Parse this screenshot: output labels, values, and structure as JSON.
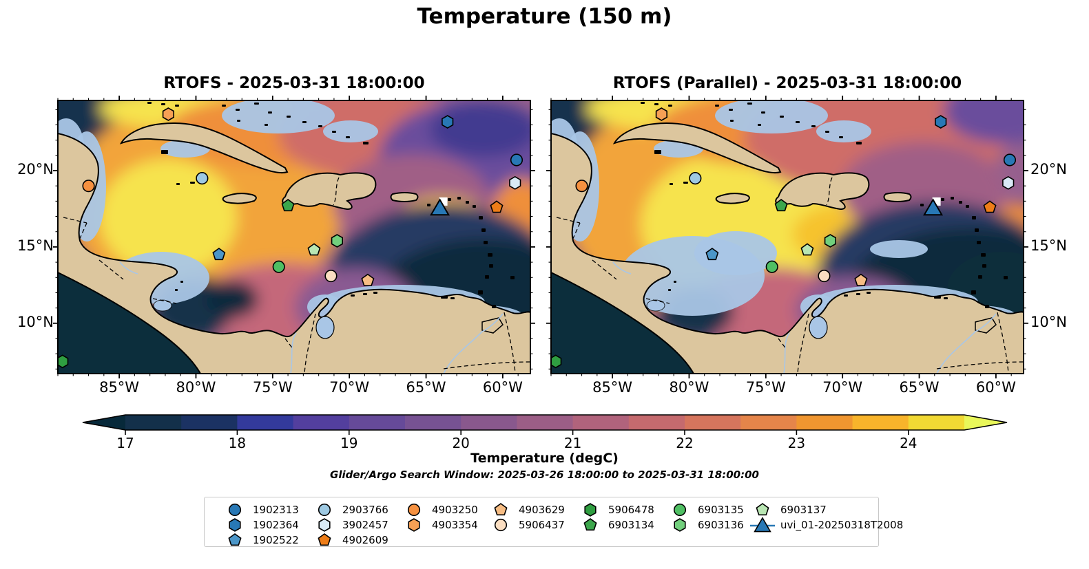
{
  "chart_data": {
    "type": "heatmap",
    "title": "Temperature (150 m)",
    "subplots": [
      {
        "title": "RTOFS - 2025-03-31 18:00:00"
      },
      {
        "title": "RTOFS (Parallel) - 2025-03-31 18:00:00"
      }
    ],
    "extent": {
      "lon_min": -89.0,
      "lon_max": -58.2,
      "lat_min": 6.7,
      "lat_max": 24.6
    },
    "xlabel_ticks": [
      "85°W",
      "80°W",
      "75°W",
      "70°W",
      "65°W",
      "60°W"
    ],
    "lon_tick_values": [
      -85,
      -80,
      -75,
      -70,
      -65,
      -60
    ],
    "ylabel_ticks": [
      "20°N",
      "15°N",
      "10°N"
    ],
    "lat_tick_values": [
      20,
      15,
      10
    ],
    "colorbar": {
      "label": "Temperature (degC)",
      "tick_labels": [
        "17",
        "18",
        "19",
        "20",
        "21",
        "22",
        "23",
        "24"
      ],
      "tick_values": [
        17,
        18,
        19,
        20,
        21,
        22,
        23,
        24
      ],
      "level_min": 17.0,
      "level_max": 24.5,
      "level_step": 0.5,
      "segment_colors": [
        "#13304a",
        "#1b3263",
        "#333a9c",
        "#533f9e",
        "#664a99",
        "#775293",
        "#89588d",
        "#9c5e86",
        "#b1637c",
        "#c56a6e",
        "#d6755d",
        "#e5854a",
        "#f09630",
        "#f8b42b",
        "#f1d934"
      ],
      "under_arrow_color": "#07293a",
      "over_arrow_color": "#e9f75a"
    },
    "annotation": "Glider/Argo Search Window: 2025-03-26 18:00:00 to 2025-03-31 18:00:00",
    "legend": {
      "entries": [
        {
          "label": "1902313",
          "shape": "circle",
          "color": "#2878b5"
        },
        {
          "label": "1902364",
          "shape": "hexagon",
          "color": "#2878b5"
        },
        {
          "label": "1902522",
          "shape": "pentagon",
          "color": "#4b96c8"
        },
        {
          "label": "2903766",
          "shape": "circle",
          "color": "#9ec9e2"
        },
        {
          "label": "3902457",
          "shape": "hexagon",
          "color": "#d9eaf6"
        },
        {
          "label": "4902609",
          "shape": "pentagon",
          "color": "#ee7d18"
        },
        {
          "label": "4903250",
          "shape": "circle",
          "color": "#f69140"
        },
        {
          "label": "4903354",
          "shape": "hexagon",
          "color": "#f6a055"
        },
        {
          "label": "4903629",
          "shape": "pentagon",
          "color": "#f7bd84"
        },
        {
          "label": "5906437",
          "shape": "circle",
          "color": "#fbdec1"
        },
        {
          "label": "5906478",
          "shape": "hexagon",
          "color": "#2f9e41"
        },
        {
          "label": "6903134",
          "shape": "pentagon",
          "color": "#3ca64c"
        },
        {
          "label": "6903135",
          "shape": "circle",
          "color": "#4fbf63"
        },
        {
          "label": "6903136",
          "shape": "hexagon",
          "color": "#72cf7d"
        },
        {
          "label": "6903137",
          "shape": "pentagon",
          "color": "#b9e6b3"
        },
        {
          "label": "uvi_01-20250318T2008",
          "shape": "triangle",
          "color": "#2878b5"
        }
      ]
    },
    "markers": [
      {
        "label": "4903354",
        "shape": "hexagon",
        "color": "#f6a055",
        "lon": -81.8,
        "lat": 23.7
      },
      {
        "label": "1902364",
        "shape": "hexagon",
        "color": "#2878b5",
        "lon": -63.6,
        "lat": 23.2
      },
      {
        "label": "1902313",
        "shape": "circle",
        "color": "#2878b5",
        "lon": -59.1,
        "lat": 20.7
      },
      {
        "label": "2903766",
        "shape": "circle",
        "color": "#9ec9e2",
        "lon": -79.6,
        "lat": 19.5
      },
      {
        "label": "4903250",
        "shape": "circle",
        "color": "#f69140",
        "lon": -87.0,
        "lat": 19.0
      },
      {
        "label": "3902457",
        "shape": "hexagon",
        "color": "#d9eaf6",
        "lon": -59.2,
        "lat": 19.2
      },
      {
        "label": "6903134",
        "shape": "pentagon",
        "color": "#3ca64c",
        "lon": -74.0,
        "lat": 17.7
      },
      {
        "label": "uvi_01-20250318T2008",
        "shape": "triangle",
        "color": "#2878b5",
        "lon": -64.1,
        "lat": 17.3
      },
      {
        "label": "4902609",
        "shape": "pentagon",
        "color": "#ee7d18",
        "lon": -60.4,
        "lat": 17.6
      },
      {
        "label": "1902522",
        "shape": "pentagon",
        "color": "#4b96c8",
        "lon": -78.5,
        "lat": 14.5
      },
      {
        "label": "6903137",
        "shape": "pentagon",
        "color": "#b9e6b3",
        "lon": -72.3,
        "lat": 14.8
      },
      {
        "label": "6903136",
        "shape": "hexagon",
        "color": "#72cf7d",
        "lon": -70.8,
        "lat": 15.4
      },
      {
        "label": "6903135",
        "shape": "circle",
        "color": "#4fbf63",
        "lon": -74.6,
        "lat": 13.7
      },
      {
        "label": "5906437",
        "shape": "circle",
        "color": "#fbdec1",
        "lon": -71.2,
        "lat": 13.1
      },
      {
        "label": "4903629",
        "shape": "pentagon",
        "color": "#f7bd84",
        "lon": -68.8,
        "lat": 12.8
      },
      {
        "label": "5906478",
        "shape": "hexagon",
        "color": "#2f9e41",
        "lon": -88.7,
        "lat": 7.5
      }
    ],
    "map_colors": {
      "land": "#dcc69e",
      "shallow_water": "#a9c6e6",
      "coastline": "#000000",
      "ocean_base": "#96608e",
      "pacific_deep": "#0c2e3c"
    }
  }
}
